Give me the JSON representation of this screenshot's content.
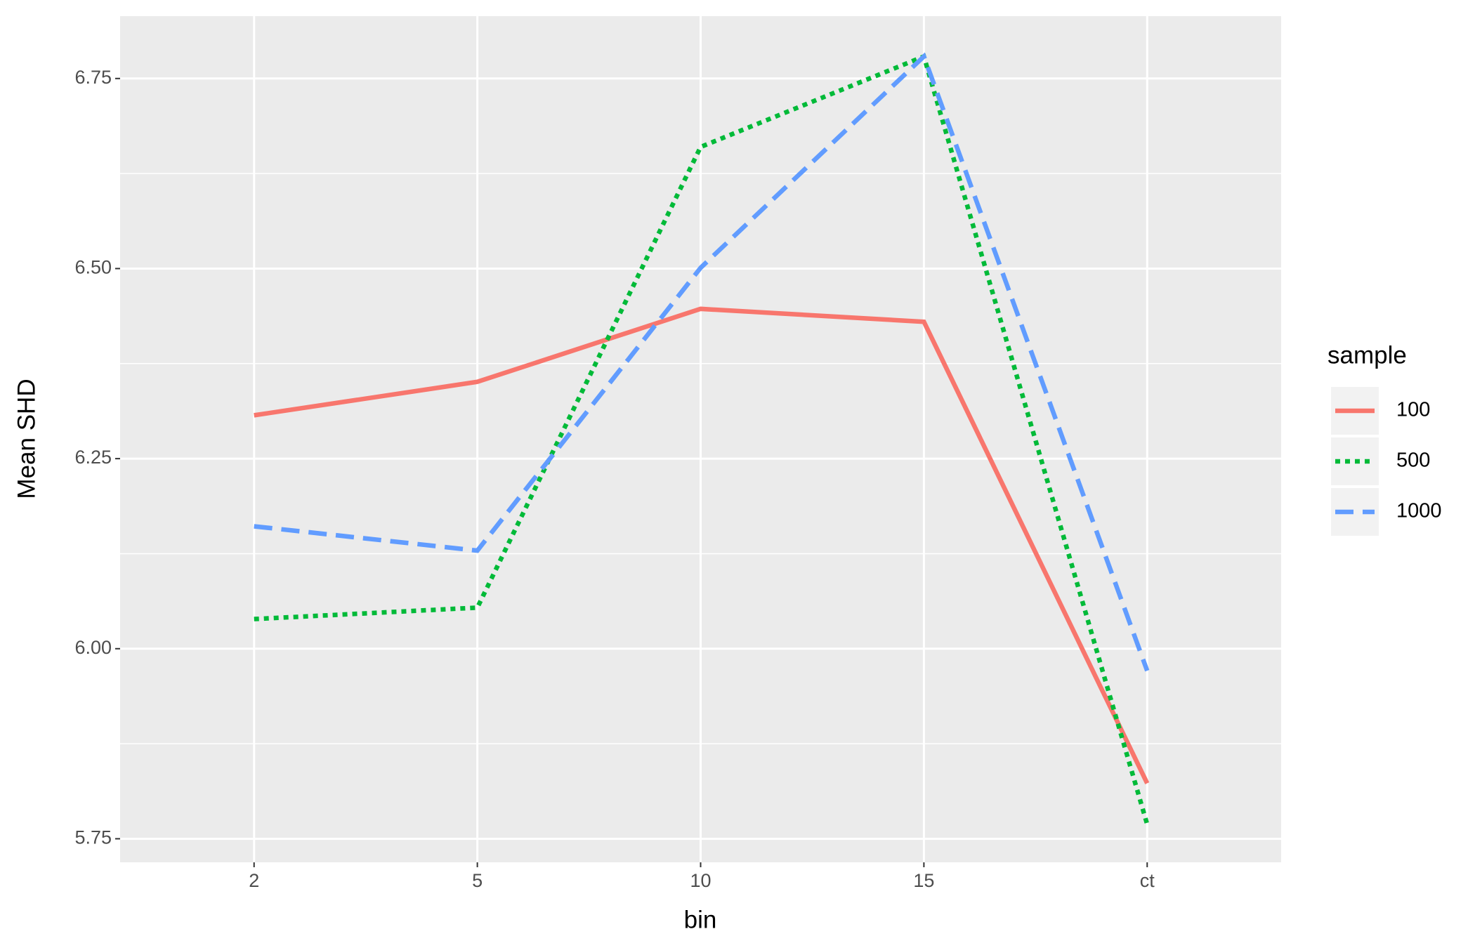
{
  "chart_data": {
    "type": "line",
    "x_label": "bin",
    "y_label": "Mean SHD",
    "categories": [
      "2",
      "5",
      "10",
      "15",
      "ct"
    ],
    "ylim": [
      5.719,
      6.832
    ],
    "yticks": [
      {
        "value": 5.75,
        "label": "5.75"
      },
      {
        "value": 6.0,
        "label": "6.00"
      },
      {
        "value": 6.25,
        "label": "6.25"
      },
      {
        "value": 6.5,
        "label": "6.50"
      },
      {
        "value": 6.75,
        "label": "6.75"
      }
    ],
    "grid": true,
    "legend_title": "sample",
    "legend_position": "right",
    "series": [
      {
        "name": "100",
        "color": "#F8766D",
        "linetype": "solid",
        "values": [
          6.307,
          6.351,
          6.447,
          6.43,
          5.823
        ]
      },
      {
        "name": "500",
        "color": "#00BA38",
        "linetype": "dotted",
        "values": [
          6.039,
          6.054,
          6.66,
          6.779,
          5.769
        ]
      },
      {
        "name": "1000",
        "color": "#619CFF",
        "linetype": "dashed",
        "values": [
          6.161,
          6.129,
          6.501,
          6.779,
          5.971
        ]
      }
    ]
  }
}
